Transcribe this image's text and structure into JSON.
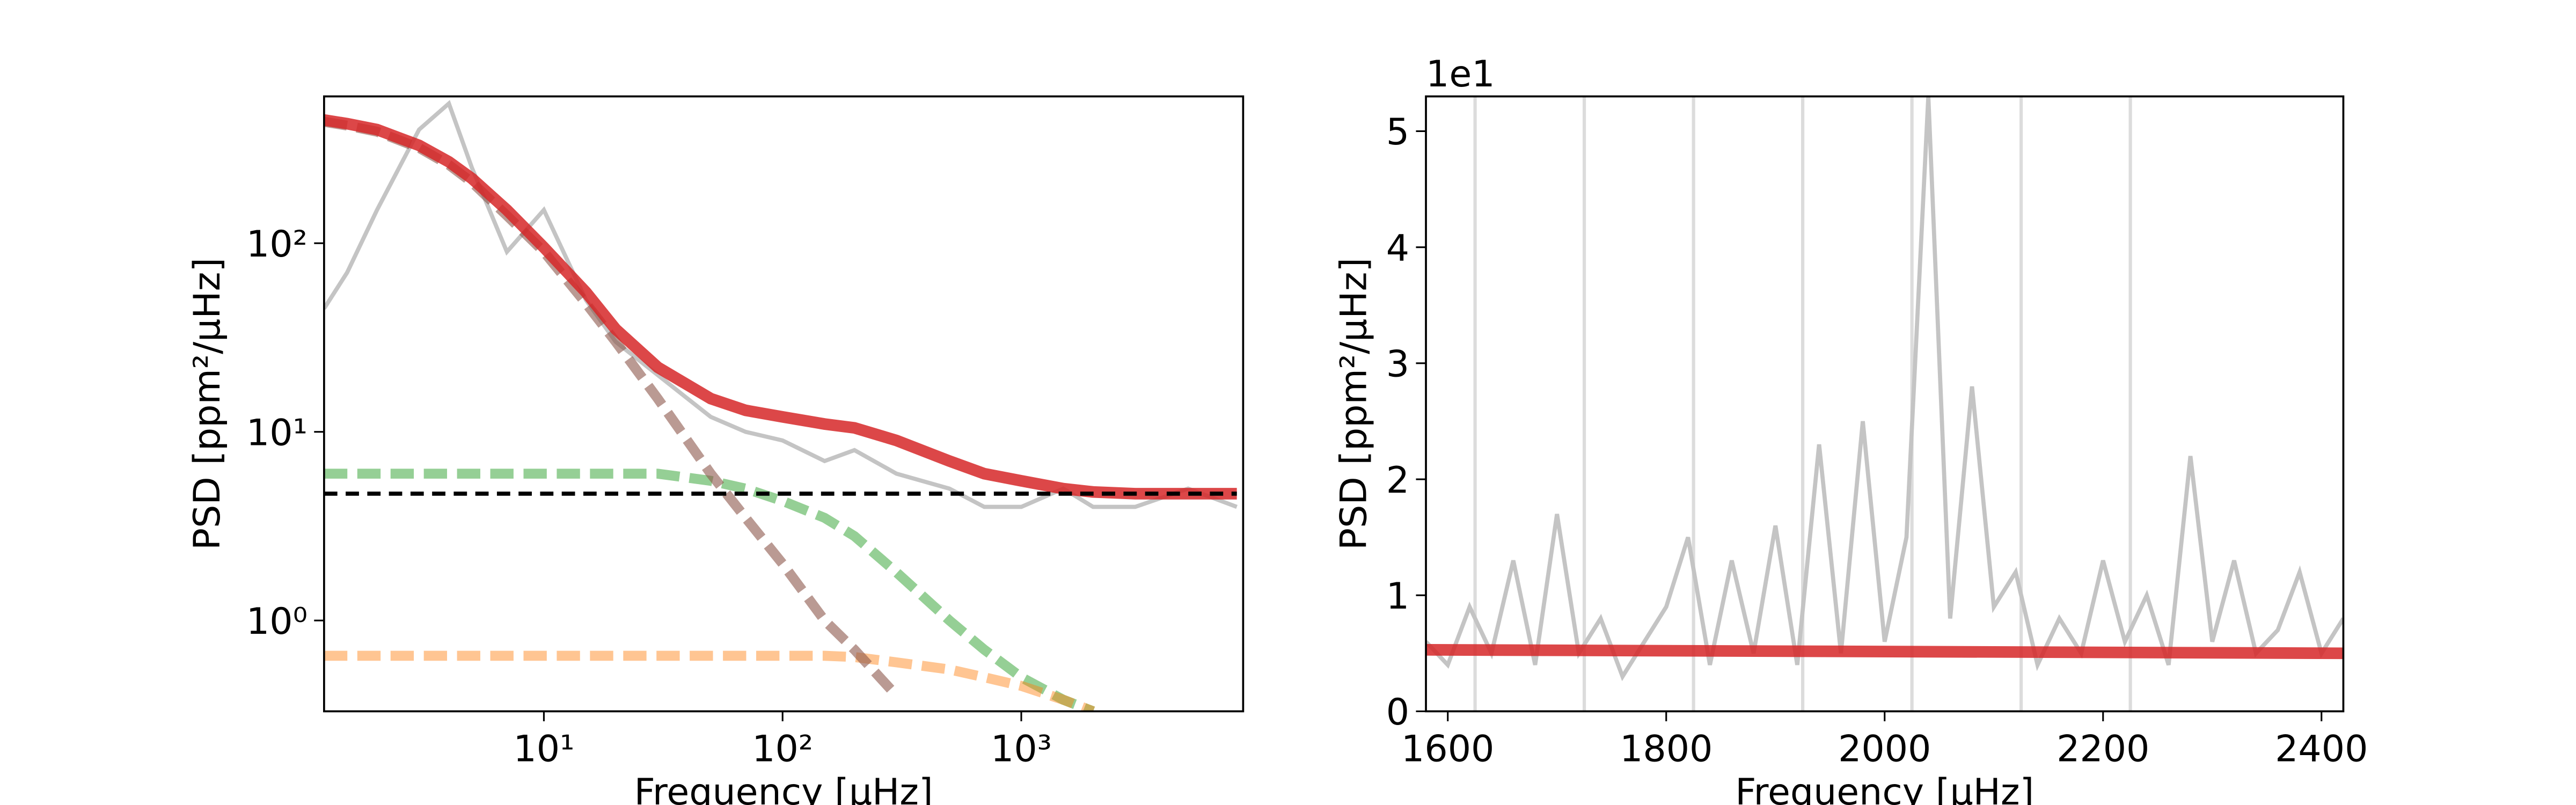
{
  "chart_data": [
    {
      "type": "line",
      "xlog": true,
      "ylog": true,
      "xlabel": "Frequency [μHz]",
      "ylabel": "PSD [ppm²/μHz]",
      "xlim": [
        1.2,
        8500
      ],
      "ylim": [
        0.33,
        600
      ],
      "xticks": [
        {
          "value": 10,
          "label": "10¹"
        },
        {
          "value": 100,
          "label": "10²"
        },
        {
          "value": 1000,
          "label": "10³"
        }
      ],
      "yticks": [
        {
          "value": 1,
          "label": "10⁰"
        },
        {
          "value": 10,
          "label": "10¹"
        },
        {
          "value": 100,
          "label": "10²"
        }
      ],
      "x": [
        1.2,
        1.5,
        2,
        3,
        4,
        5,
        7,
        10,
        15,
        20,
        30,
        50,
        70,
        100,
        150,
        200,
        300,
        500,
        700,
        1000,
        1500,
        2000,
        3000,
        5000,
        8000
      ],
      "series": [
        {
          "color": "#c4c4c4",
          "values": [
            45,
            70,
            150,
            400,
            550,
            250,
            90,
            150,
            50,
            30,
            20,
            12,
            10,
            9,
            7,
            8,
            6,
            5,
            4,
            4,
            5,
            4,
            4,
            5,
            4
          ]
        },
        {
          "color": "#2ca02c",
          "dashed": true,
          "alpha": 0.5,
          "values": [
            6,
            6,
            6,
            6,
            6,
            6,
            6,
            6,
            6,
            6,
            6,
            5.5,
            5,
            4.3,
            3.5,
            2.8,
            1.8,
            1,
            0.7,
            0.5,
            0.38,
            0.33,
            null,
            null,
            null
          ]
        },
        {
          "color": "#ff7f0e",
          "dashed": true,
          "alpha": 0.45,
          "values": [
            0.65,
            0.65,
            0.65,
            0.65,
            0.65,
            0.65,
            0.65,
            0.65,
            0.65,
            0.65,
            0.65,
            0.65,
            0.65,
            0.65,
            0.65,
            0.64,
            0.6,
            0.55,
            0.5,
            0.45,
            0.38,
            0.33,
            null,
            null,
            null
          ]
        },
        {
          "color": "#8c564b",
          "dashed": true,
          "alpha": 0.6,
          "values": [
            440,
            420,
            390,
            320,
            260,
            210,
            140,
            90,
            48,
            30,
            15,
            6,
            3.5,
            2,
            1,
            0.7,
            0.4,
            null,
            null,
            null,
            null,
            null,
            null,
            null,
            null
          ]
        },
        {
          "color": "#d62728",
          "alpha": 0.85,
          "values": [
            450,
            430,
            400,
            330,
            270,
            220,
            150,
            95,
            55,
            35,
            22,
            15,
            13,
            12,
            11,
            10.5,
            9,
            7,
            6,
            5.5,
            5,
            4.8,
            4.7,
            4.7,
            4.7
          ]
        },
        {
          "color": "#000000",
          "dashed": true,
          "values": [
            4.7,
            4.7,
            4.7,
            4.7,
            4.7,
            4.7,
            4.7,
            4.7,
            4.7,
            4.7,
            4.7,
            4.7,
            4.7,
            4.7,
            4.7,
            4.7,
            4.7,
            4.7,
            4.7,
            4.7,
            4.7,
            4.7,
            4.7,
            4.7,
            4.7
          ]
        }
      ]
    },
    {
      "type": "line",
      "xlog": false,
      "ylog": false,
      "xlabel": "Frequency [μHz]",
      "ylabel": "PSD [ppm²/μHz]",
      "offset_text": "1e1",
      "xlim": [
        1580,
        2420
      ],
      "ylim": [
        0,
        5.3
      ],
      "xticks": [
        1600,
        1800,
        2000,
        2200,
        2400
      ],
      "yticks": [
        0,
        1,
        2,
        3,
        4,
        5
      ],
      "vlines": [
        1625,
        1725,
        1825,
        1925,
        2025,
        2125,
        2225
      ],
      "x": [
        1580,
        1600,
        1620,
        1640,
        1660,
        1680,
        1700,
        1720,
        1740,
        1760,
        1780,
        1800,
        1820,
        1840,
        1860,
        1880,
        1900,
        1920,
        1940,
        1960,
        1980,
        2000,
        2020,
        2040,
        2060,
        2080,
        2100,
        2120,
        2140,
        2160,
        2180,
        2200,
        2220,
        2240,
        2260,
        2280,
        2300,
        2320,
        2340,
        2360,
        2380,
        2400,
        2420
      ],
      "series": [
        {
          "color": "#c4c4c4",
          "values": [
            0.6,
            0.4,
            0.9,
            0.5,
            1.3,
            0.4,
            1.7,
            0.5,
            0.8,
            0.3,
            0.6,
            0.9,
            1.5,
            0.4,
            1.3,
            0.5,
            1.6,
            0.4,
            2.3,
            0.5,
            2.5,
            0.6,
            1.5,
            5.3,
            0.8,
            2.8,
            0.9,
            1.2,
            0.4,
            0.8,
            0.5,
            1.3,
            0.6,
            1.0,
            0.4,
            2.2,
            0.6,
            1.3,
            0.5,
            0.7,
            1.2,
            0.5,
            0.8
          ]
        },
        {
          "color": "#d62728",
          "alpha": 0.85,
          "x": [
            1580,
            2420
          ],
          "values": [
            0.53,
            0.5
          ]
        }
      ]
    }
  ]
}
